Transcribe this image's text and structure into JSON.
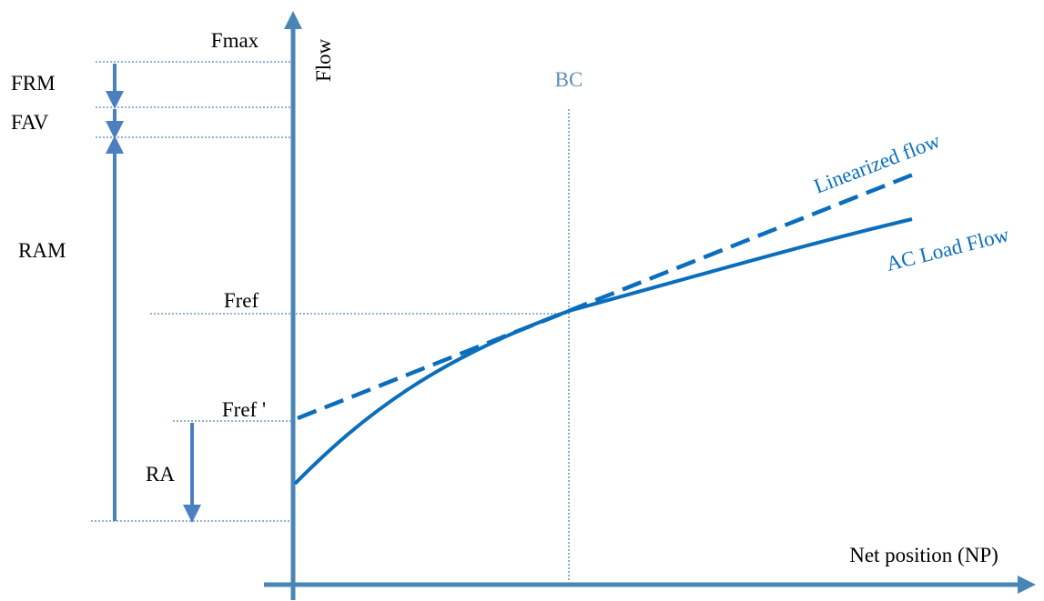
{
  "axes": {
    "y_label": "Flow",
    "x_label": "Net position (NP)"
  },
  "levels": {
    "fmax": "Fmax",
    "fref": "Fref",
    "fref_prime": "Fref '"
  },
  "margins": {
    "frm": "FRM",
    "fav": "FAV",
    "ram": "RAM",
    "ra": "RA"
  },
  "base_case": {
    "label": "BC"
  },
  "curves": {
    "linearized": "Linearized flow",
    "ac_load_flow": "AC Load Flow"
  },
  "colors": {
    "axis": "#4a86b5",
    "curve": "#0a6ebd",
    "guide": "#4a86b5",
    "arrow": "#4a7fc0",
    "bc_label": "#5b8fb8"
  }
}
